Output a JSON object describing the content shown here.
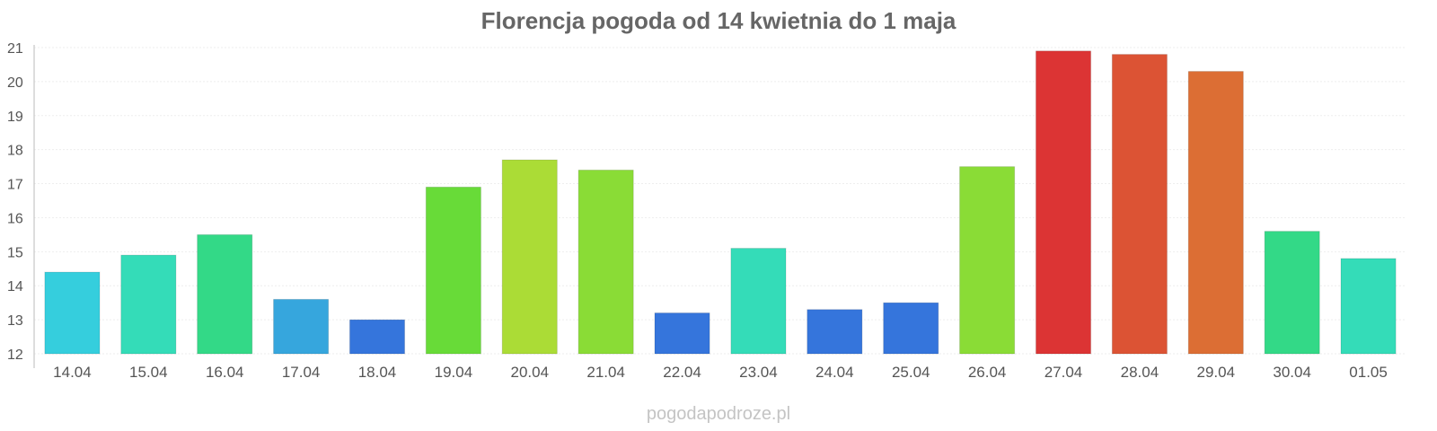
{
  "chart_data": {
    "type": "bar",
    "title": "Florencja pogoda od 14 kwietnia do 1 maja",
    "xlabel": "",
    "ylabel": "",
    "ylim": [
      12,
      21
    ],
    "y_ticks": [
      12,
      13,
      14,
      15,
      16,
      17,
      18,
      19,
      20,
      21
    ],
    "grid": true,
    "legend": "none",
    "categories": [
      "14.04",
      "15.04",
      "16.04",
      "17.04",
      "18.04",
      "19.04",
      "20.04",
      "21.04",
      "22.04",
      "23.04",
      "24.04",
      "25.04",
      "26.04",
      "27.04",
      "28.04",
      "29.04",
      "30.04",
      "01.05"
    ],
    "values": [
      14.4,
      14.9,
      15.5,
      13.6,
      13.0,
      16.9,
      17.7,
      17.4,
      13.2,
      15.1,
      13.3,
      13.5,
      17.5,
      20.9,
      20.8,
      20.3,
      15.6,
      14.8
    ],
    "colors": [
      "#35cedd",
      "#34dcb8",
      "#33d987",
      "#36a6dd",
      "#3575dc",
      "#68db38",
      "#abdc36",
      "#8adc36",
      "#3575dc",
      "#34dcb8",
      "#3575dc",
      "#3575dc",
      "#8adc36",
      "#dc3434",
      "#dc5334",
      "#dc6e34",
      "#33d987",
      "#34dcb8"
    ]
  },
  "watermark": "pogodapodroze.pl"
}
